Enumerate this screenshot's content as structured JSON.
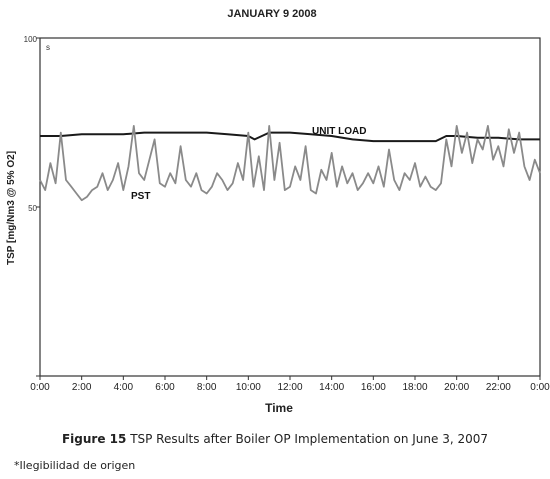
{
  "chart_data": {
    "type": "line",
    "title": "JANUARY 9 2008",
    "xlabel": "Time",
    "ylabel": "TSP [mg/Nm3 @ 5% O2]",
    "ylim": [
      0,
      100
    ],
    "yticks": [
      "100",
      "50",
      ""
    ],
    "corner_label": "s",
    "x_ticks": [
      "0:00",
      "2:00",
      "4:00",
      "6:00",
      "8:00",
      "10:00",
      "12:00",
      "14:00",
      "16:00",
      "18:00",
      "20:00",
      "22:00",
      "0:00"
    ],
    "grid": false,
    "series": [
      {
        "name": "UNIT LOAD",
        "color": "#1a1a1a",
        "x": [
          0,
          1,
          2,
          3,
          4,
          5,
          6,
          7,
          8,
          9,
          10,
          10.3,
          11,
          12,
          13,
          14,
          15,
          16,
          17,
          18,
          19,
          19.5,
          20,
          21,
          22,
          23,
          24
        ],
        "y": [
          71.0,
          71.0,
          71.5,
          71.5,
          71.5,
          72.0,
          72.0,
          72.0,
          72.0,
          71.5,
          71.0,
          70.0,
          72.0,
          72.0,
          71.5,
          71.0,
          70.0,
          69.5,
          69.5,
          69.5,
          69.5,
          71.0,
          71.0,
          70.5,
          70.5,
          70.0,
          70.0
        ]
      },
      {
        "name": "PST",
        "color": "#8a8a8a",
        "x": [
          0,
          0.25,
          0.5,
          0.75,
          1.0,
          1.25,
          1.5,
          1.75,
          2.0,
          2.25,
          2.5,
          2.75,
          3.0,
          3.25,
          3.5,
          3.75,
          4.0,
          4.25,
          4.5,
          4.75,
          5.0,
          5.25,
          5.5,
          5.75,
          6.0,
          6.25,
          6.5,
          6.75,
          7.0,
          7.25,
          7.5,
          7.75,
          8.0,
          8.25,
          8.5,
          8.75,
          9.0,
          9.25,
          9.5,
          9.75,
          10.0,
          10.25,
          10.5,
          10.75,
          11.0,
          11.25,
          11.5,
          11.75,
          12.0,
          12.25,
          12.5,
          12.75,
          13.0,
          13.25,
          13.5,
          13.75,
          14.0,
          14.25,
          14.5,
          14.75,
          15.0,
          15.25,
          15.5,
          15.75,
          16.0,
          16.25,
          16.5,
          16.75,
          17.0,
          17.25,
          17.5,
          17.75,
          18.0,
          18.25,
          18.5,
          18.75,
          19.0,
          19.25,
          19.5,
          19.75,
          20.0,
          20.25,
          20.5,
          20.75,
          21.0,
          21.25,
          21.5,
          21.75,
          22.0,
          22.25,
          22.5,
          22.75,
          23.0,
          23.25,
          23.5,
          23.75,
          24.0
        ],
        "y": [
          58,
          55,
          63,
          57,
          72,
          58,
          56,
          54,
          52,
          53,
          55,
          56,
          60,
          55,
          58,
          63,
          55,
          62,
          74,
          60,
          58,
          64,
          70,
          57,
          56,
          60,
          57,
          68,
          58,
          56,
          60,
          55,
          54,
          56,
          60,
          58,
          55,
          57,
          63,
          58,
          72,
          56,
          65,
          55,
          74,
          58,
          69,
          55,
          56,
          62,
          58,
          68,
          55,
          54,
          61,
          58,
          66,
          56,
          62,
          57,
          60,
          55,
          57,
          60,
          57,
          62,
          56,
          67,
          58,
          55,
          60,
          58,
          63,
          56,
          59,
          56,
          55,
          57,
          70,
          62,
          74,
          66,
          72,
          63,
          70,
          67,
          74,
          64,
          68,
          62,
          73,
          66,
          72,
          62,
          58,
          64,
          60
        ]
      }
    ]
  },
  "caption": {
    "figure_label": "Figure 15",
    "text": "TSP Results after Boiler OP Implementation on June 3, 2007"
  },
  "note": "*Ilegibilidad de origen"
}
